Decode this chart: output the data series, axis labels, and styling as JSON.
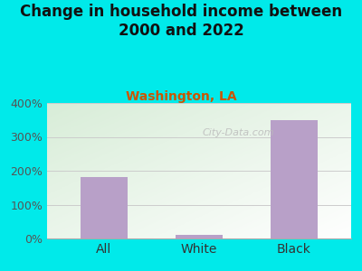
{
  "title": "Change in household income between\n2000 and 2022",
  "subtitle": "Washington, LA",
  "categories": [
    "All",
    "White",
    "Black"
  ],
  "values": [
    181,
    10,
    350
  ],
  "bar_color": "#b8a0c8",
  "background_color": "#00eaea",
  "plot_bg_topleft": "#d8edd8",
  "plot_bg_bottomright": "#ffffff",
  "title_fontsize": 12,
  "subtitle_fontsize": 10,
  "subtitle_color": "#cc5500",
  "ylim": [
    0,
    400
  ],
  "yticks": [
    0,
    100,
    200,
    300,
    400
  ],
  "ytick_labels": [
    "0%",
    "100%",
    "200%",
    "300%",
    "400%"
  ],
  "watermark": "City-Data.com",
  "grid_color": "#cccccc",
  "tick_label_fontsize": 9,
  "xlabel_fontsize": 10
}
